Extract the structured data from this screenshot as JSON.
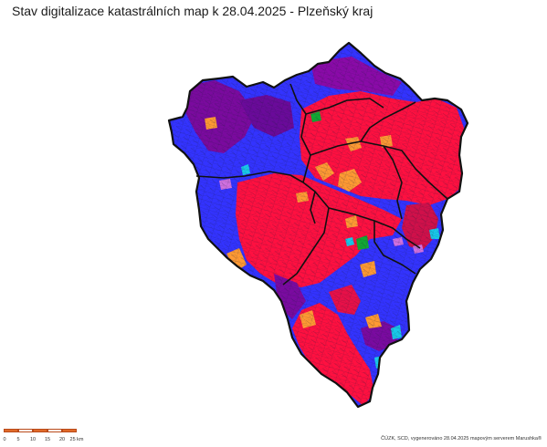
{
  "title": "Stav digitalizace katastrálních map k 28.04.2025 - Plzeňský kraj",
  "credit": "ČÚZK, SCD, vygenerováno 28.04.2025 mapovým serverem Marushka®",
  "scalebar": {
    "ticks": [
      "0",
      "5",
      "10",
      "15",
      "20",
      "25 km"
    ]
  },
  "colors": {
    "digital_red": "#ff1040",
    "blue": "#3333ff",
    "purple": "#8a0aa8",
    "orange": "#ff9a33",
    "green": "#12a833",
    "cyan": "#18c8e8",
    "violet": "#d070e0",
    "scalebar_fill": "#e06a2a",
    "border": "#111111",
    "cell_line": "#1a1a3a"
  }
}
